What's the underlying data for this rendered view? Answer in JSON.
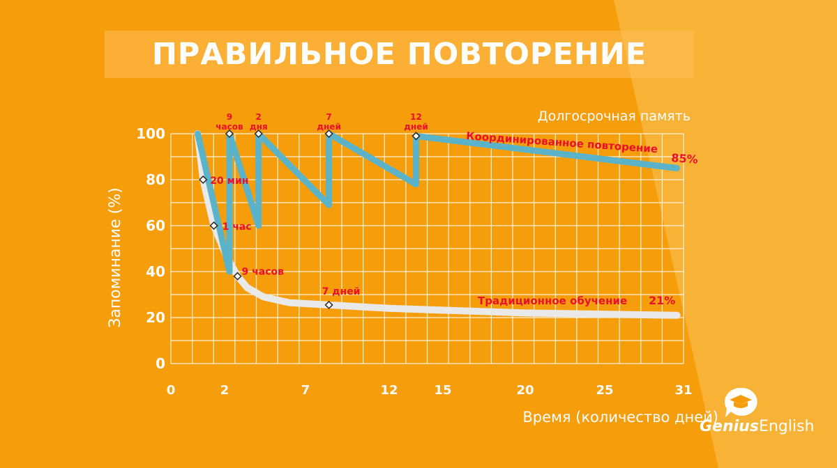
{
  "page": {
    "title": "ПРАВИЛЬНОЕ ПОВТОРЕНИЕ",
    "long_term_label": "Долгосрочная память",
    "brand_bold": "Genius",
    "brand_regular": "English",
    "colors": {
      "background": "#f59d0a",
      "coordinated_line": "#5bb3c9",
      "traditional_line": "#e9e9e9",
      "annotation_red": "#e8102a",
      "grid": "#ffffff"
    }
  },
  "chart_data": {
    "type": "line",
    "xlabel": "Время (количество дней)",
    "ylabel": "Запоминание (%)",
    "xlim": [
      0,
      31
    ],
    "ylim": [
      0,
      100
    ],
    "x_ticks": [
      "0",
      "2",
      "7",
      "12",
      "15",
      "20",
      "25",
      "31"
    ],
    "y_ticks": [
      "0",
      "20",
      "40",
      "60",
      "80",
      "100"
    ],
    "grid": true,
    "series": [
      {
        "name": "Координированное повторение",
        "end_label": "85%",
        "x": [
          1.0,
          2.3,
          2.3,
          4.1,
          4.1,
          8.4,
          8.4,
          13.5,
          13.5,
          30.5
        ],
        "y": [
          100,
          40,
          100,
          60,
          100,
          69,
          100,
          78,
          99,
          85
        ]
      },
      {
        "name": "Традиционное обучение",
        "end_label": "21%",
        "x": [
          1.0,
          1.2,
          1.6,
          2.1,
          2.8,
          3.4,
          4.4,
          6.0,
          8.4,
          12,
          20,
          30.5
        ],
        "y": [
          100,
          80,
          60,
          47,
          38,
          33,
          29,
          26.5,
          25.5,
          24,
          22,
          21
        ]
      }
    ],
    "annotations": [
      {
        "text": "9",
        "text2": "часов"
      },
      {
        "text": "2",
        "text2": "дня"
      },
      {
        "text": "7",
        "text2": "дней"
      },
      {
        "text": "12",
        "text2": "дней"
      },
      {
        "text": "20 мин"
      },
      {
        "text": "1 час"
      },
      {
        "text": "9 часов"
      },
      {
        "text": "7 дней"
      }
    ]
  }
}
